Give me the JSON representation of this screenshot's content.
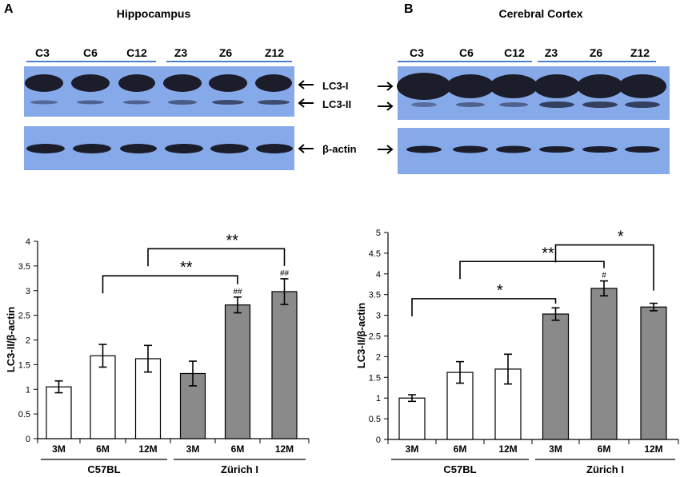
{
  "panels": [
    {
      "id": "A",
      "letter": "A",
      "title": "Hippocampus",
      "control_lane_labels": [
        "C3",
        "C6",
        "C12"
      ],
      "zurich_lane_labels": [
        "Z3",
        "Z6",
        "Z12"
      ],
      "band_labels": {
        "lc3i": "LC3-I",
        "lc3ii": "LC3-II",
        "actin": "β-actin"
      },
      "arrow_side": "right"
    },
    {
      "id": "B",
      "letter": "B",
      "title": "Cerebral Cortex",
      "control_lane_labels": [
        "C3",
        "C6",
        "C12"
      ],
      "zurich_lane_labels": [
        "Z3",
        "Z6",
        "Z12"
      ],
      "band_labels": {
        "lc3i": "LC3-I",
        "lc3ii": "LC3-II",
        "actin": "β-actin"
      },
      "arrow_side": "left"
    }
  ],
  "colors": {
    "blot_background": "#86a9ea",
    "band": "#1b1d2a",
    "lane_line": "#4e7fc9",
    "bar_control": "#ffffff",
    "bar_zurich": "#8a8a8a",
    "axis": "#000000"
  },
  "chart_data": [
    {
      "panel": "A",
      "type": "bar",
      "ylabel": "LC3-II/β-actin",
      "ylim": [
        0,
        4
      ],
      "yticks": [
        0,
        0.5,
        1,
        1.5,
        2,
        2.5,
        3,
        3.5,
        4
      ],
      "ytick_labels": [
        "0",
        "0.5",
        "1",
        "1.5",
        "2",
        "2.5",
        "3",
        "3.5",
        "4"
      ],
      "categories": [
        "3M",
        "6M",
        "12M",
        "3M",
        "6M",
        "12M"
      ],
      "groups": [
        {
          "label": "C57BL",
          "indices": [
            0,
            1,
            2
          ]
        },
        {
          "label": "Zürich I",
          "indices": [
            3,
            4,
            5
          ]
        }
      ],
      "series": [
        {
          "name": "C57BL",
          "color": "#ffffff",
          "values": [
            1.05,
            1.68,
            1.62,
            null,
            null,
            null
          ],
          "errors": [
            0.12,
            0.23,
            0.27,
            null,
            null,
            null
          ]
        },
        {
          "name": "Zürich I",
          "color": "#8a8a8a",
          "values": [
            null,
            null,
            null,
            1.32,
            2.71,
            2.98
          ],
          "errors": [
            null,
            null,
            null,
            0.25,
            0.16,
            0.26
          ]
        }
      ],
      "bar_annotations": [
        {
          "index": 4,
          "text": "##"
        },
        {
          "index": 5,
          "text": "##"
        }
      ],
      "brackets": [
        {
          "from": 1,
          "to": 4,
          "level": 3.3,
          "text": "**"
        },
        {
          "from": 2,
          "to": 5,
          "level": 3.85,
          "text": "**"
        }
      ]
    },
    {
      "panel": "B",
      "type": "bar",
      "ylabel": "LC3-II/β-actin",
      "ylim": [
        0,
        5
      ],
      "yticks": [
        0,
        0.5,
        1,
        1.5,
        2,
        2.5,
        3,
        3.5,
        4,
        4.5,
        5
      ],
      "ytick_labels": [
        "0",
        "0.5",
        "1",
        "1.5",
        "2",
        "2.5",
        "3",
        "3.5",
        "4",
        "4.5",
        "5"
      ],
      "categories": [
        "3M",
        "6M",
        "12M",
        "3M",
        "6M",
        "12M"
      ],
      "groups": [
        {
          "label": "C57BL",
          "indices": [
            0,
            1,
            2
          ]
        },
        {
          "label": "Zürich I",
          "indices": [
            3,
            4,
            5
          ]
        }
      ],
      "series": [
        {
          "name": "C57BL",
          "color": "#ffffff",
          "values": [
            1.0,
            1.62,
            1.7,
            null,
            null,
            null
          ],
          "errors": [
            0.08,
            0.26,
            0.36,
            null,
            null,
            null
          ]
        },
        {
          "name": "Zürich I",
          "color": "#8a8a8a",
          "values": [
            null,
            null,
            null,
            3.03,
            3.65,
            3.2
          ],
          "errors": [
            null,
            null,
            null,
            0.15,
            0.18,
            0.09
          ]
        }
      ],
      "bar_annotations": [
        {
          "index": 4,
          "text": "#"
        }
      ],
      "brackets": [
        {
          "from": 0,
          "to": 3,
          "level": 3.4,
          "text": "*"
        },
        {
          "from": 1,
          "to": 4,
          "level": 4.3,
          "text": "**"
        },
        {
          "from": 3,
          "to": 5,
          "level": 4.7,
          "text": "*"
        }
      ]
    }
  ]
}
